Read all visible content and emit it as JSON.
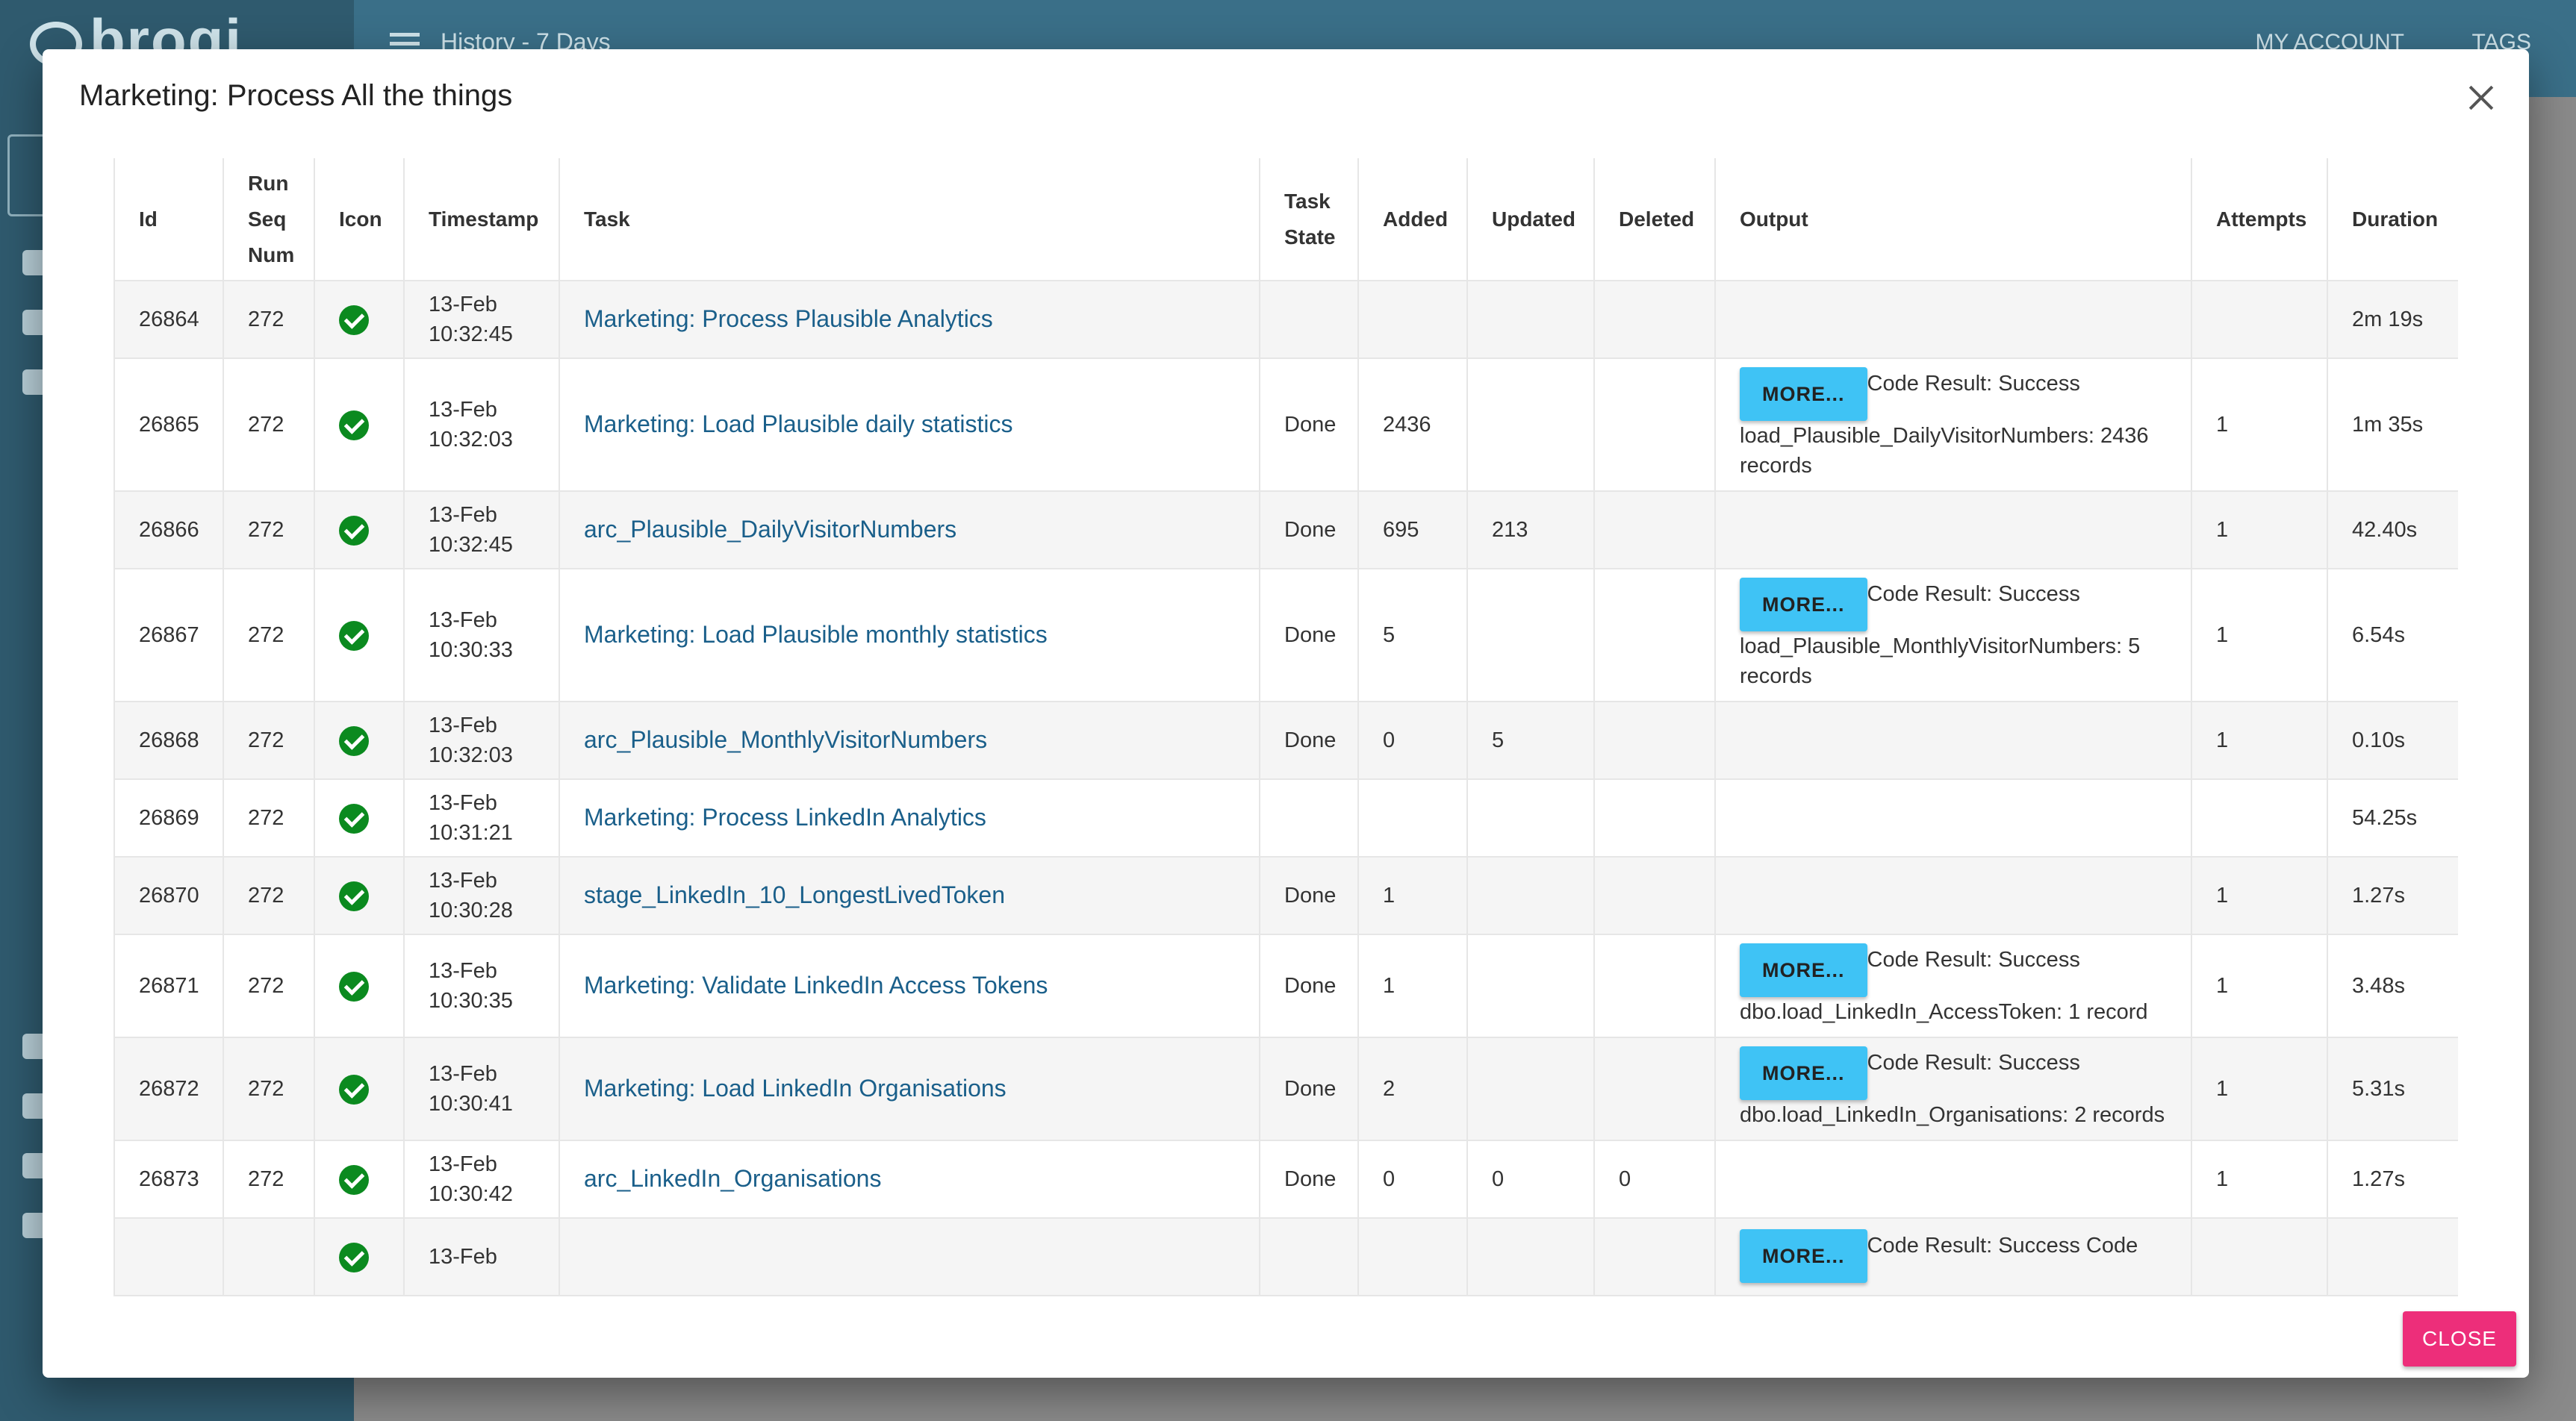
{
  "background": {
    "logo": "broqi",
    "history_title": "History - 7 Days",
    "my_account": "MY ACCOUNT",
    "tags": "TAGS"
  },
  "modal": {
    "title": "Marketing: Process All the things",
    "close_label": "CLOSE",
    "more_label": "MORE...",
    "columns": {
      "id": "Id",
      "run_seq_num": "Run Seq Num",
      "icon": "Icon",
      "timestamp": "Timestamp",
      "task": "Task",
      "task_state": "Task State",
      "added": "Added",
      "updated": "Updated",
      "deleted": "Deleted",
      "output": "Output",
      "attempts": "Attempts",
      "duration": "Duration"
    },
    "rows": [
      {
        "id": "26864",
        "seq": "272",
        "ts_date": "13-Feb",
        "ts_time": "10:32:45",
        "task": "Marketing: Process Plausible Analytics",
        "state": "",
        "added": "",
        "updated": "",
        "deleted": "",
        "more": false,
        "output": "",
        "attempts": "",
        "duration": "2m 19s"
      },
      {
        "id": "26865",
        "seq": "272",
        "ts_date": "13-Feb",
        "ts_time": "10:32:03",
        "task": "Marketing: Load Plausible daily statistics",
        "state": "Done",
        "added": "2436",
        "updated": "",
        "deleted": "",
        "more": true,
        "output": "Code Result: Success load_Plausible_DailyVisitorNumbers: 2436 records",
        "attempts": "1",
        "duration": "1m 35s"
      },
      {
        "id": "26866",
        "seq": "272",
        "ts_date": "13-Feb",
        "ts_time": "10:32:45",
        "task": "arc_Plausible_DailyVisitorNumbers",
        "state": "Done",
        "added": "695",
        "updated": "213",
        "deleted": "",
        "more": false,
        "output": "",
        "attempts": "1",
        "duration": "42.40s"
      },
      {
        "id": "26867",
        "seq": "272",
        "ts_date": "13-Feb",
        "ts_time": "10:30:33",
        "task": "Marketing: Load Plausible monthly statistics",
        "state": "Done",
        "added": "5",
        "updated": "",
        "deleted": "",
        "more": true,
        "output": "Code Result: Success load_Plausible_MonthlyVisitorNumbers: 5 records",
        "attempts": "1",
        "duration": "6.54s"
      },
      {
        "id": "26868",
        "seq": "272",
        "ts_date": "13-Feb",
        "ts_time": "10:32:03",
        "task": "arc_Plausible_MonthlyVisitorNumbers",
        "state": "Done",
        "added": "0",
        "updated": "5",
        "deleted": "",
        "more": false,
        "output": "",
        "attempts": "1",
        "duration": "0.10s"
      },
      {
        "id": "26869",
        "seq": "272",
        "ts_date": "13-Feb",
        "ts_time": "10:31:21",
        "task": "Marketing: Process LinkedIn Analytics",
        "state": "",
        "added": "",
        "updated": "",
        "deleted": "",
        "more": false,
        "output": "",
        "attempts": "",
        "duration": "54.25s"
      },
      {
        "id": "26870",
        "seq": "272",
        "ts_date": "13-Feb",
        "ts_time": "10:30:28",
        "task": "stage_LinkedIn_10_LongestLivedToken",
        "state": "Done",
        "added": "1",
        "updated": "",
        "deleted": "",
        "more": false,
        "output": "",
        "attempts": "1",
        "duration": "1.27s"
      },
      {
        "id": "26871",
        "seq": "272",
        "ts_date": "13-Feb",
        "ts_time": "10:30:35",
        "task": "Marketing: Validate LinkedIn Access Tokens",
        "state": "Done",
        "added": "1",
        "updated": "",
        "deleted": "",
        "more": true,
        "output": "Code Result: Success dbo.load_LinkedIn_AccessToken: 1 record",
        "attempts": "1",
        "duration": "3.48s"
      },
      {
        "id": "26872",
        "seq": "272",
        "ts_date": "13-Feb",
        "ts_time": "10:30:41",
        "task": "Marketing: Load LinkedIn Organisations",
        "state": "Done",
        "added": "2",
        "updated": "",
        "deleted": "",
        "more": true,
        "output": "Code Result: Success dbo.load_LinkedIn_Organisations: 2 records",
        "attempts": "1",
        "duration": "5.31s"
      },
      {
        "id": "26873",
        "seq": "272",
        "ts_date": "13-Feb",
        "ts_time": "10:30:42",
        "task": "arc_LinkedIn_Organisations",
        "state": "Done",
        "added": "0",
        "updated": "0",
        "deleted": "0",
        "more": false,
        "output": "",
        "attempts": "1",
        "duration": "1.27s"
      },
      {
        "id": "",
        "seq": "",
        "ts_date": "13-Feb",
        "ts_time": "",
        "task": "",
        "state": "",
        "added": "",
        "updated": "",
        "deleted": "",
        "more": true,
        "output": "Code Result: Success Code",
        "attempts": "",
        "duration": "",
        "partial": true
      }
    ]
  }
}
